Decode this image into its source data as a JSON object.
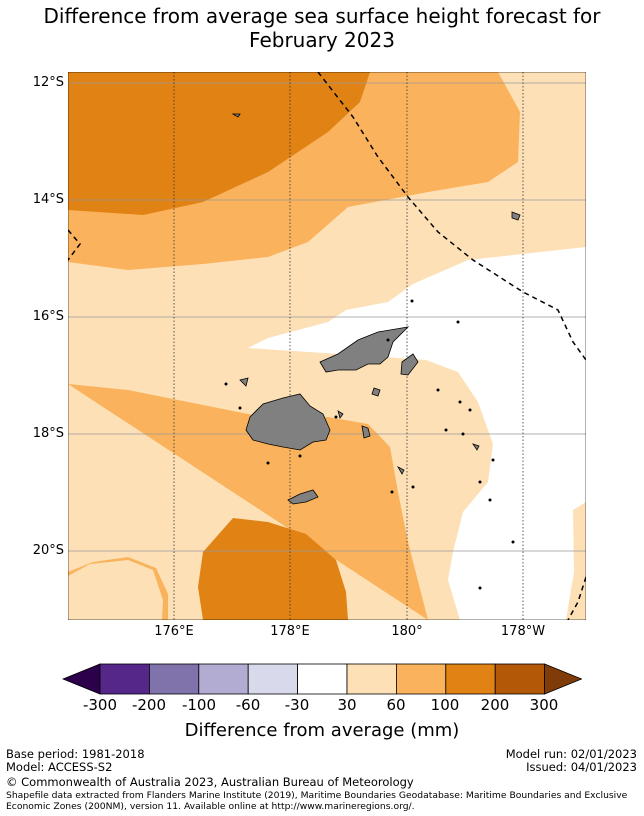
{
  "title": {
    "line1": "Difference from average sea surface height forecast for",
    "line2": "February 2023"
  },
  "map": {
    "lat_labels": [
      "12°S",
      "14°S",
      "16°S",
      "18°S",
      "20°S"
    ],
    "lon_labels": [
      "176°E",
      "178°E",
      "180°",
      "178°W"
    ],
    "colors": {
      "level_30_60": "#fde0b6",
      "level_60_100": "#fab35c",
      "level_100_200": "#e08214",
      "land": "#808080",
      "ocean_no_data": "#ffffff"
    }
  },
  "colorbar": {
    "ticks": [
      "-300",
      "-200",
      "-100",
      "-60",
      "-30",
      "30",
      "60",
      "100",
      "200",
      "300"
    ],
    "colors": [
      "#2d004b",
      "#542788",
      "#8073ac",
      "#b2abd2",
      "#d8daeb",
      "#ffffff",
      "#fde0b6",
      "#fab35c",
      "#e08214",
      "#b35806",
      "#7f3b08"
    ],
    "label": "Difference from average (mm)"
  },
  "footer": {
    "base_period": "Base period: 1981-2018",
    "model": "Model: ACCESS-S2",
    "model_run": "Model run: 02/01/2023",
    "issued": "Issued: 04/01/2023",
    "copyright": "© Commonwealth of Australia 2023, Australian Bureau of Meteorology",
    "shapefile_credit": "Shapefile data extracted from Flanders Marine Institute (2019), Maritime Boundaries Geodatabase: Maritime Boundaries and Exclusive Economic Zones (200NM), version 11. Available online at http://www.marineregions.org/."
  }
}
